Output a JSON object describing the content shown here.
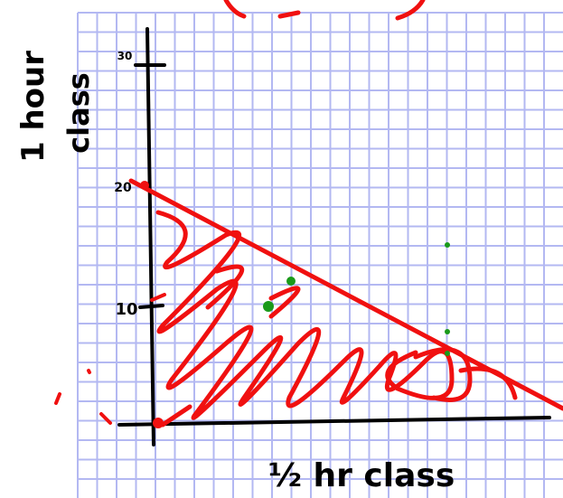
{
  "y_axis_label": {
    "line1": "1 hour",
    "line2": "class"
  },
  "x_axis_label": "½ hr class",
  "tick_labels": {
    "top": "30",
    "middle": "20",
    "lower": "10"
  }
}
